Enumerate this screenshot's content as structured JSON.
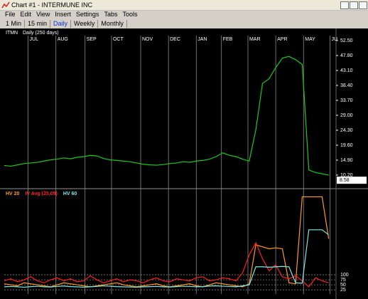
{
  "window_title": "Chart #1 - INTERMUNE INC",
  "menu": [
    "File",
    "Edit",
    "View",
    "Insert",
    "Settings",
    "Tabs",
    "Tools"
  ],
  "tabs": [
    "1 Min",
    "15 min",
    "Daily",
    "Weekly",
    "Monthly"
  ],
  "active_tab": "Daily",
  "chart_data": [
    {
      "type": "line",
      "title": "ITMN",
      "subtitle": "Daily (250 days)",
      "color": "#1ec81e",
      "x": [
        0,
        5,
        10,
        15,
        20,
        25,
        30,
        35,
        40,
        45,
        50,
        55,
        60,
        65,
        70,
        75,
        80,
        85,
        90,
        95,
        100,
        105,
        110,
        115,
        120,
        125,
        130,
        135,
        140,
        145,
        150,
        155,
        160,
        165,
        170,
        175,
        180,
        185,
        190,
        195,
        200,
        205,
        210,
        215,
        220,
        225,
        230,
        235,
        240,
        245
      ],
      "values": [
        13.2,
        13.0,
        13.4,
        13.8,
        14.0,
        14.2,
        14.6,
        15.0,
        15.2,
        15.6,
        15.3,
        15.8,
        16.0,
        16.4,
        16.2,
        15.4,
        15.0,
        14.8,
        14.6,
        14.4,
        14.0,
        13.6,
        13.4,
        13.3,
        13.5,
        13.8,
        14.0,
        14.4,
        14.2,
        14.6,
        14.8,
        15.2,
        16.0,
        17.2,
        16.4,
        16.0,
        15.2,
        14.6,
        24.5,
        39.0,
        40.5,
        44.0,
        47.0,
        47.5,
        46.5,
        45.0,
        11.8,
        11.0,
        10.6,
        10.2
      ],
      "last_price": 8.58,
      "xlim": [
        0,
        250
      ],
      "xticks": [
        {
          "value": 18,
          "label": "JUL"
        },
        {
          "value": 39,
          "label": "AUG"
        },
        {
          "value": 61,
          "label": "SEP"
        },
        {
          "value": 81,
          "label": "OCT"
        },
        {
          "value": 103,
          "label": "NOV"
        },
        {
          "value": 124,
          "label": "DEC"
        },
        {
          "value": 145,
          "label": "JAN"
        },
        {
          "value": 164,
          "label": "FEB"
        },
        {
          "value": 184,
          "label": "MAR"
        },
        {
          "value": 205,
          "label": "APR"
        },
        {
          "value": 226,
          "label": "MAY"
        },
        {
          "value": 246,
          "label": "JU"
        }
      ],
      "ylim": [
        6.6,
        56.3
      ],
      "yticks": [
        {
          "value": 10.2,
          "label": "10.20"
        },
        {
          "value": 14.9,
          "label": "14.90"
        },
        {
          "value": 19.6,
          "label": "19.60"
        },
        {
          "value": 24.3,
          "label": "24.30"
        },
        {
          "value": 29,
          "label": "29.00"
        },
        {
          "value": 33.7,
          "label": "33.70"
        },
        {
          "value": 38.4,
          "label": "38.40"
        },
        {
          "value": 43.1,
          "label": "43.10"
        },
        {
          "value": 47.8,
          "label": "47.80"
        },
        {
          "value": 52.5,
          "label": "52.50"
        }
      ]
    },
    {
      "type": "line",
      "x": [
        0,
        5,
        10,
        15,
        20,
        25,
        30,
        35,
        40,
        45,
        50,
        55,
        60,
        65,
        70,
        75,
        80,
        85,
        90,
        95,
        100,
        105,
        110,
        115,
        120,
        125,
        130,
        135,
        140,
        145,
        150,
        155,
        160,
        165,
        170,
        175,
        180,
        185,
        190,
        195,
        200,
        205,
        210,
        215,
        220,
        225,
        230,
        235,
        240,
        245
      ],
      "xlim": [
        0,
        250
      ],
      "ylim": [
        4,
        520
      ],
      "yticks": [
        25,
        50,
        75,
        100
      ],
      "grid": true,
      "series": [
        {
          "name": "HV 20",
          "color": "#ff9a1e",
          "values": [
            55,
            50,
            45,
            60,
            55,
            50,
            45,
            40,
            50,
            60,
            55,
            50,
            45,
            40,
            45,
            50,
            55,
            60,
            50,
            45,
            40,
            45,
            50,
            55,
            45,
            40,
            45,
            50,
            55,
            45,
            40,
            50,
            60,
            55,
            50,
            45,
            40,
            55,
            250,
            240,
            230,
            235,
            230,
            60,
            55,
            490,
            490,
            490,
            490,
            280
          ]
        },
        {
          "name": "IV Avg (25,09)",
          "color": "#ff2020",
          "values": [
            70,
            80,
            65,
            75,
            90,
            70,
            60,
            75,
            85,
            70,
            80,
            65,
            70,
            95,
            75,
            60,
            70,
            80,
            65,
            75,
            70,
            60,
            75,
            85,
            70,
            65,
            80,
            75,
            70,
            85,
            90,
            70,
            75,
            85,
            80,
            70,
            110,
            200,
            260,
            180,
            120,
            150,
            90,
            80,
            95,
            70,
            40,
            85,
            70,
            60
          ]
        },
        {
          "name": "HV 60",
          "color": "#7fe8e8",
          "values": [
            40,
            42,
            40,
            38,
            41,
            43,
            40,
            39,
            42,
            44,
            41,
            40,
            38,
            40,
            42,
            45,
            43,
            41,
            40,
            39,
            38,
            40,
            41,
            42,
            40,
            39,
            41,
            43,
            42,
            40,
            41,
            44,
            45,
            43,
            42,
            40,
            45,
            50,
            140,
            140,
            138,
            140,
            142,
            140,
            60,
            58,
            325,
            325,
            325,
            300
          ]
        }
      ]
    }
  ]
}
